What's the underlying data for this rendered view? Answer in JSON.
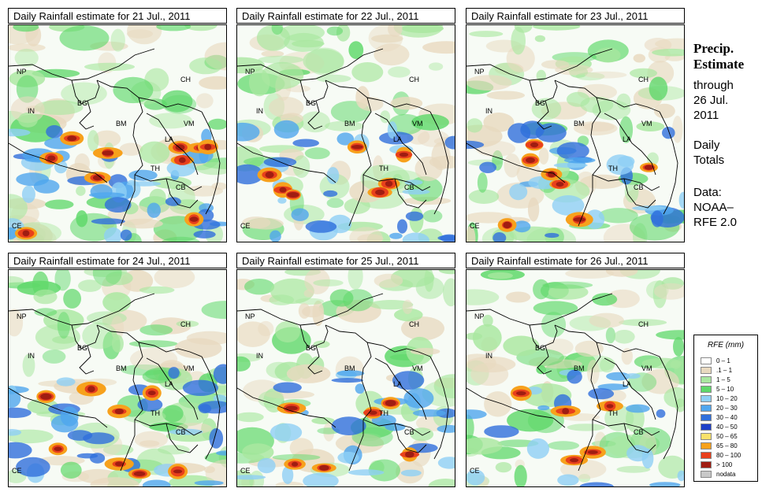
{
  "panels": [
    {
      "title": "Daily Rainfall estimate for  21 Jul., 2011",
      "intensity": 1.0
    },
    {
      "title": "Daily Rainfall estimate for  22 Jul., 2011",
      "intensity": 0.65
    },
    {
      "title": "Daily Rainfall estimate for  23 Jul., 2011",
      "intensity": 0.6
    },
    {
      "title": "Daily Rainfall estimate for  24 Jul., 2011",
      "intensity": 0.7
    },
    {
      "title": "Daily Rainfall estimate for  25 Jul., 2011",
      "intensity": 0.55
    },
    {
      "title": "Daily Rainfall estimate for  26 Jul., 2011",
      "intensity": 0.35
    }
  ],
  "country_labels": [
    "NP",
    "CH",
    "BG",
    "IN",
    "BM",
    "VM",
    "LA",
    "TH",
    "CB",
    "CE"
  ],
  "sidebar": {
    "heading_1": "Precip.",
    "heading_2": "Estimate",
    "through": "through",
    "date_1": "26 Jul.",
    "date_2": "2011",
    "totals_1": "Daily",
    "totals_2": "Totals",
    "data_1": "Data:",
    "data_2": "NOAA–",
    "data_3": "RFE 2.0"
  },
  "legend": {
    "title": "RFE (mm)",
    "items": [
      {
        "label": "0 – 1",
        "color": "#ffffff"
      },
      {
        "label": ".1 – 1",
        "color": "#e8d9bf"
      },
      {
        "label": "1 – 5",
        "color": "#a9e7a0"
      },
      {
        "label": "5 – 10",
        "color": "#5fd86a"
      },
      {
        "label": "10 – 20",
        "color": "#8fd0f5"
      },
      {
        "label": "20 – 30",
        "color": "#4fa6ee"
      },
      {
        "label": "30 – 40",
        "color": "#2f6fdc"
      },
      {
        "label": "40 – 50",
        "color": "#1d3fc8"
      },
      {
        "label": "50 – 65",
        "color": "#f9e26b"
      },
      {
        "label": "65 – 80",
        "color": "#f7a11c"
      },
      {
        "label": "80 – 100",
        "color": "#e8401c"
      },
      {
        "label": "> 100",
        "color": "#a01d12"
      },
      {
        "label": "nodata",
        "color": "#c8c8c8"
      }
    ]
  }
}
